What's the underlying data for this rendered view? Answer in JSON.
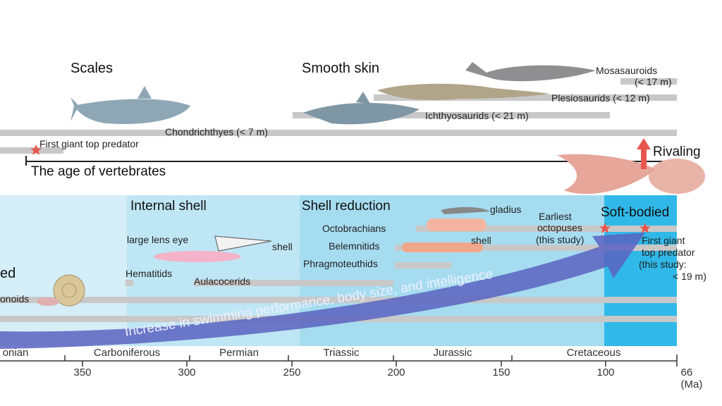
{
  "vertebrates": {
    "heading_scales": "Scales",
    "heading_smooth": "Smooth skin",
    "mosasauroids": "Mosasauroids",
    "mosasauroids_size": "(< 17 m)",
    "plesiosaurids": "Plesiosaurids (< 12 m)",
    "ichthyosaurids": "Ichthyosaurids (< 21 m)",
    "chondrichthyes": "Chondrichthyes (< 7 m)",
    "first_giant": "First giant top predator",
    "age_label": "The age of vertebrates",
    "rivaling": "Rivaling"
  },
  "cephalopods": {
    "heading_partial": "ed",
    "ammonoids_partial": "onoids",
    "heading_internal": "Internal shell",
    "heading_reduction": "Shell reduction",
    "heading_soft": "Soft-bodied",
    "large_lens_eye": "large lens eye",
    "shell1": "shell",
    "hematitids": "Hematitids",
    "aulacocerids": "Aulacocerids",
    "octobrachians": "Octobrachians",
    "belemnitids": "Belemnitids",
    "phragmoteuthids": "Phragmoteuthids",
    "gladius": "gladius",
    "shell2": "shell",
    "earliest_1": "Earliest",
    "earliest_2": "octopuses",
    "earliest_3": "(this study)",
    "fg_1": "First giant",
    "fg_2": "top predator",
    "fg_3": "(this study:",
    "fg_4": "< 19 m)",
    "arrow_text": "Increase in swimming performance, body size, and intelligence"
  },
  "axis": {
    "periods": [
      "onian",
      "Carboniferous",
      "Permian",
      "Triassic",
      "Jurassic",
      "Cretaceous"
    ],
    "ticks": [
      "350",
      "300",
      "250",
      "200",
      "150",
      "100",
      "66 (Ma)"
    ]
  },
  "colors": {
    "star": "#e8554e",
    "arrow": "#5a63c0",
    "band_soft": "#34b8e6"
  }
}
